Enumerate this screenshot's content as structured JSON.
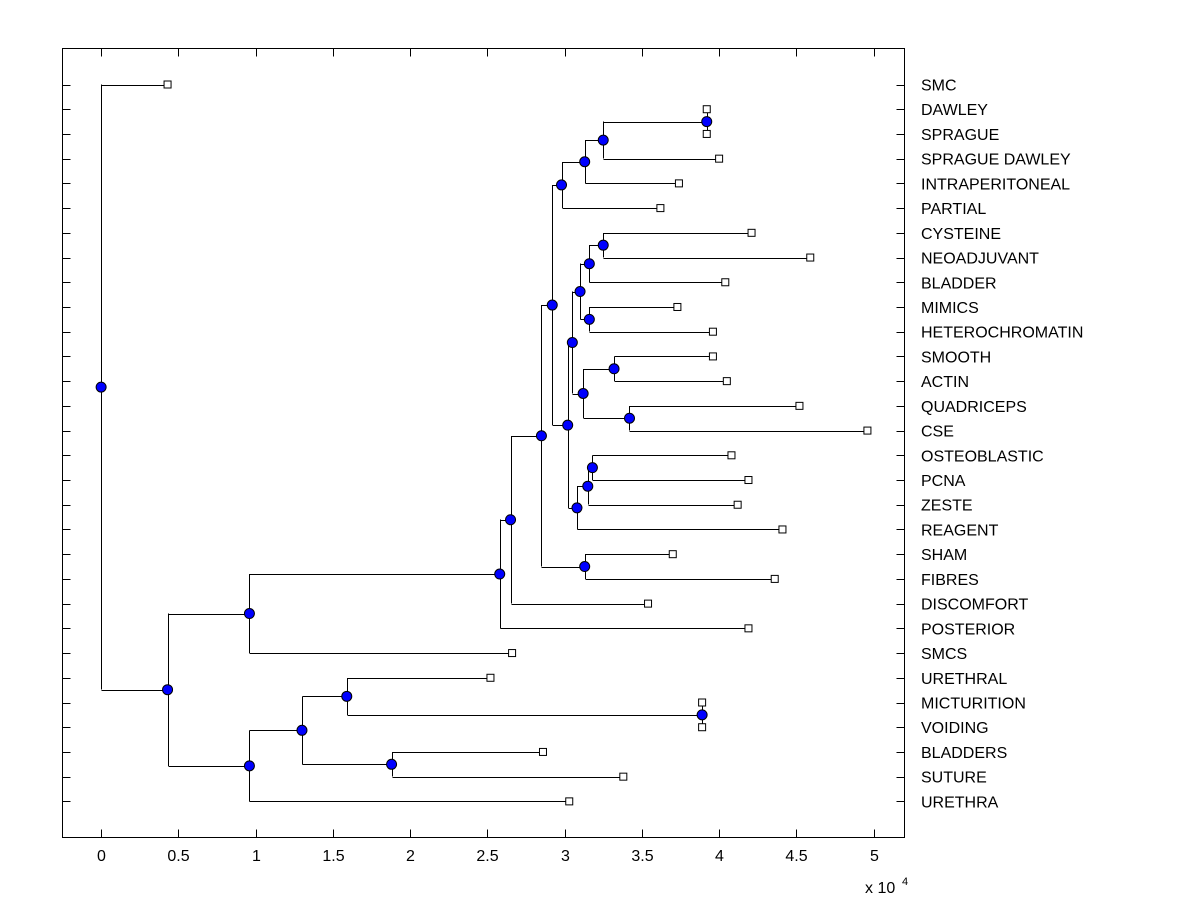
{
  "chart_data": {
    "type": "dendrogram",
    "x_multiplier_label": "x 10",
    "x_multiplier_exponent": "4",
    "xlim": [
      -2500,
      52000
    ],
    "x_ticks": [
      {
        "value": 0,
        "label": "0"
      },
      {
        "value": 5000,
        "label": "0.5"
      },
      {
        "value": 10000,
        "label": "1"
      },
      {
        "value": 15000,
        "label": "1.5"
      },
      {
        "value": 20000,
        "label": "2"
      },
      {
        "value": 25000,
        "label": "2.5"
      },
      {
        "value": 30000,
        "label": "3"
      },
      {
        "value": 35000,
        "label": "3.5"
      },
      {
        "value": 40000,
        "label": "4"
      },
      {
        "value": 45000,
        "label": "4.5"
      },
      {
        "value": 50000,
        "label": "5"
      }
    ],
    "leaves": [
      {
        "id": "SMC",
        "label": "SMC",
        "x": 4300
      },
      {
        "id": "DAWLEY",
        "label": "DAWLEY",
        "x": 39200
      },
      {
        "id": "SPRAGUE",
        "label": "SPRAGUE",
        "x": 39200
      },
      {
        "id": "SPRAGUE_DAWLEY",
        "label": "SPRAGUE DAWLEY",
        "x": 40000
      },
      {
        "id": "INTRAPERITONEAL",
        "label": "INTRAPERITONEAL",
        "x": 37400
      },
      {
        "id": "PARTIAL",
        "label": "PARTIAL",
        "x": 36200
      },
      {
        "id": "CYSTEINE",
        "label": "CYSTEINE",
        "x": 42100
      },
      {
        "id": "NEOADJUVANT",
        "label": "NEOADJUVANT",
        "x": 45900
      },
      {
        "id": "BLADDER",
        "label": "BLADDER",
        "x": 40400
      },
      {
        "id": "MIMICS",
        "label": "MIMICS",
        "x": 37300
      },
      {
        "id": "HETEROCHROMATIN",
        "label": "HETEROCHROMATIN",
        "x": 39600
      },
      {
        "id": "SMOOTH",
        "label": "SMOOTH",
        "x": 39600
      },
      {
        "id": "ACTIN",
        "label": "ACTIN",
        "x": 40500
      },
      {
        "id": "QUADRICEPS",
        "label": "QUADRICEPS",
        "x": 45200
      },
      {
        "id": "CSE",
        "label": "CSE",
        "x": 49600
      },
      {
        "id": "OSTEOBLASTIC",
        "label": "OSTEOBLASTIC",
        "x": 40800
      },
      {
        "id": "PCNA",
        "label": "PCNA",
        "x": 41900
      },
      {
        "id": "ZESTE",
        "label": "ZESTE",
        "x": 41200
      },
      {
        "id": "REAGENT",
        "label": "REAGENT",
        "x": 44100
      },
      {
        "id": "SHAM",
        "label": "SHAM",
        "x": 37000
      },
      {
        "id": "FIBRES",
        "label": "FIBRES",
        "x": 43600
      },
      {
        "id": "DISCOMFORT",
        "label": "DISCOMFORT",
        "x": 35400
      },
      {
        "id": "POSTERIOR",
        "label": "POSTERIOR",
        "x": 41900
      },
      {
        "id": "SMCS",
        "label": "SMCS",
        "x": 26600
      },
      {
        "id": "URETHRAL",
        "label": "URETHRAL",
        "x": 25200
      },
      {
        "id": "MICTURITION",
        "label": "MICTURITION",
        "x": 38900
      },
      {
        "id": "VOIDING",
        "label": "VOIDING",
        "x": 38900
      },
      {
        "id": "BLADDERS",
        "label": "BLADDERS",
        "x": 28600
      },
      {
        "id": "SUTURE",
        "label": "SUTURE",
        "x": 33800
      },
      {
        "id": "URETHRA",
        "label": "URETHRA",
        "x": 30300
      }
    ],
    "merges": [
      {
        "id": "m1",
        "x": 39200,
        "children": [
          "DAWLEY",
          "SPRAGUE"
        ]
      },
      {
        "id": "m2",
        "x": 32500,
        "children": [
          "m1",
          "SPRAGUE_DAWLEY"
        ]
      },
      {
        "id": "m3",
        "x": 31300,
        "children": [
          "m2",
          "INTRAPERITONEAL"
        ]
      },
      {
        "id": "m4",
        "x": 29800,
        "children": [
          "m3",
          "PARTIAL"
        ]
      },
      {
        "id": "m5",
        "x": 32500,
        "children": [
          "CYSTEINE",
          "NEOADJUVANT"
        ]
      },
      {
        "id": "m6",
        "x": 31600,
        "children": [
          "m5",
          "BLADDER"
        ]
      },
      {
        "id": "m7",
        "x": 31600,
        "children": [
          "MIMICS",
          "HETEROCHROMATIN"
        ]
      },
      {
        "id": "m8",
        "x": 31000,
        "children": [
          "m6",
          "m7"
        ]
      },
      {
        "id": "m9",
        "x": 33200,
        "children": [
          "SMOOTH",
          "ACTIN"
        ]
      },
      {
        "id": "m10",
        "x": 34200,
        "children": [
          "QUADRICEPS",
          "CSE"
        ]
      },
      {
        "id": "m11",
        "x": 31200,
        "children": [
          "m9",
          "m10"
        ]
      },
      {
        "id": "m12",
        "x": 30500,
        "children": [
          "m8",
          "m11"
        ]
      },
      {
        "id": "m13",
        "x": 31800,
        "children": [
          "OSTEOBLASTIC",
          "PCNA"
        ]
      },
      {
        "id": "m14",
        "x": 31500,
        "children": [
          "m13",
          "ZESTE"
        ]
      },
      {
        "id": "m15",
        "x": 30800,
        "children": [
          "m14",
          "REAGENT"
        ]
      },
      {
        "id": "m16",
        "x": 30200,
        "children": [
          "m12",
          "m15"
        ]
      },
      {
        "id": "m17",
        "x": 29200,
        "children": [
          "m4",
          "m16"
        ]
      },
      {
        "id": "m18",
        "x": 31300,
        "children": [
          "SHAM",
          "FIBRES"
        ]
      },
      {
        "id": "m19",
        "x": 28500,
        "children": [
          "m17",
          "m18"
        ]
      },
      {
        "id": "m20",
        "x": 26500,
        "children": [
          "m19",
          "DISCOMFORT"
        ]
      },
      {
        "id": "m21",
        "x": 25800,
        "children": [
          "m20",
          "POSTERIOR"
        ]
      },
      {
        "id": "m22",
        "x": 9600,
        "children": [
          "m21",
          "SMCS"
        ]
      },
      {
        "id": "m23",
        "x": 38900,
        "children": [
          "MICTURITION",
          "VOIDING"
        ]
      },
      {
        "id": "m24",
        "x": 15900,
        "children": [
          "URETHRAL",
          "m23"
        ]
      },
      {
        "id": "m25",
        "x": 18800,
        "children": [
          "BLADDERS",
          "SUTURE"
        ]
      },
      {
        "id": "m26",
        "x": 13000,
        "children": [
          "m24",
          "m25"
        ]
      },
      {
        "id": "m27",
        "x": 9600,
        "children": [
          "m26",
          "URETHRA"
        ]
      },
      {
        "id": "m28",
        "x": 4300,
        "children": [
          "m22",
          "m27"
        ]
      },
      {
        "id": "m29",
        "x": 0,
        "children": [
          "SMC",
          "m28"
        ]
      }
    ],
    "colors": {
      "node_fill": "#0000ff",
      "node_stroke": "#000000",
      "leaf_fill": "#ffffff",
      "line": "#000000"
    }
  }
}
